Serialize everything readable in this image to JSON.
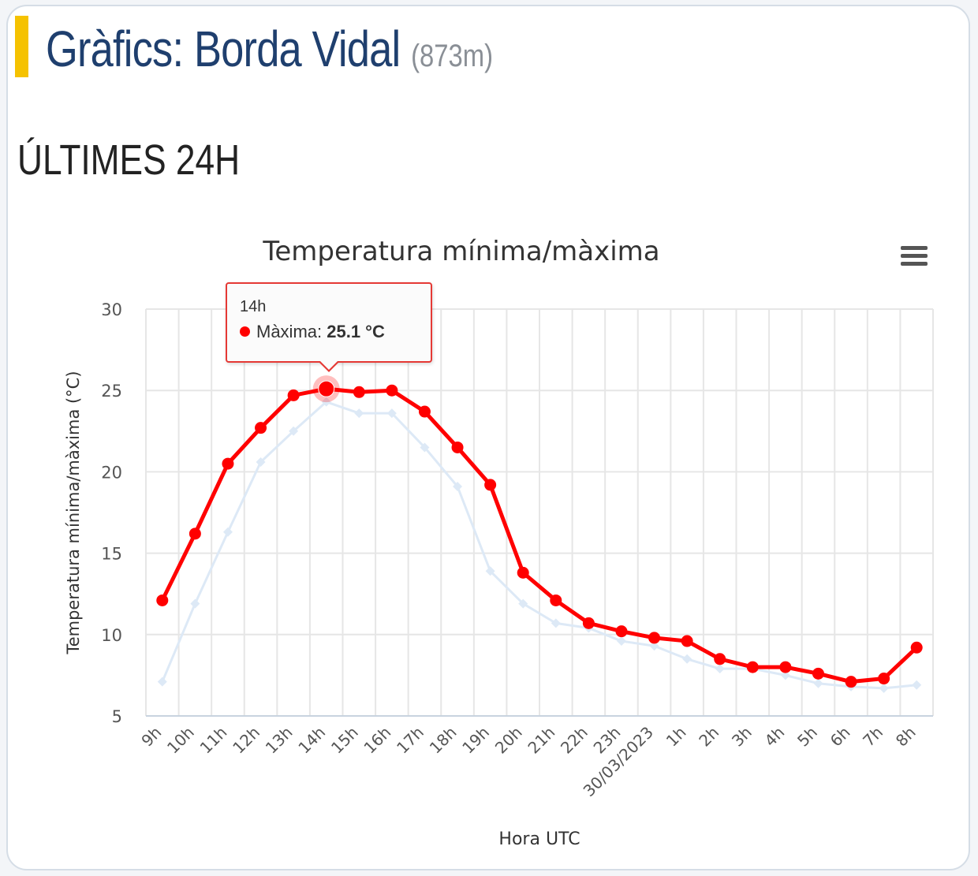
{
  "header": {
    "title": "Gràfics: Borda Vidal",
    "altitude": "(873m)",
    "accent_color": "#f5c200"
  },
  "section": {
    "title": "ÚLTIMES 24H"
  },
  "chart_menu": {
    "icon": "hamburger-menu-icon"
  },
  "tooltip": {
    "x_label": "14h",
    "series_name": "Màxima",
    "value_text": "25.1 °C"
  },
  "chart_data": {
    "type": "line",
    "title": "Temperatura mínima/màxima",
    "xlabel": "Hora UTC",
    "ylabel": "Temperatura mínima/màxima (°C)",
    "ylim": [
      5,
      30
    ],
    "yticks": [
      5,
      10,
      15,
      20,
      25,
      30
    ],
    "grid": true,
    "categories": [
      "9h",
      "10h",
      "11h",
      "12h",
      "13h",
      "14h",
      "15h",
      "16h",
      "17h",
      "18h",
      "19h",
      "20h",
      "21h",
      "22h",
      "23h",
      "30/03/2023",
      "1h",
      "2h",
      "3h",
      "4h",
      "5h",
      "6h",
      "7h",
      "8h"
    ],
    "series": [
      {
        "name": "Màxima",
        "color": "#ff0000",
        "values": [
          12.1,
          16.2,
          20.5,
          22.7,
          24.7,
          25.1,
          24.9,
          25.0,
          23.7,
          21.5,
          19.2,
          13.8,
          12.1,
          10.7,
          10.2,
          9.8,
          9.6,
          8.5,
          8.0,
          8.0,
          7.6,
          7.1,
          7.3,
          9.2
        ]
      },
      {
        "name": "Mínima",
        "color": "#dde9f6",
        "values": [
          7.1,
          11.9,
          16.3,
          20.6,
          22.5,
          24.3,
          23.6,
          23.6,
          21.5,
          19.1,
          13.9,
          11.9,
          10.7,
          10.4,
          9.6,
          9.3,
          8.5,
          7.9,
          7.9,
          7.5,
          7.0,
          6.8,
          6.7,
          6.9
        ]
      }
    ]
  }
}
